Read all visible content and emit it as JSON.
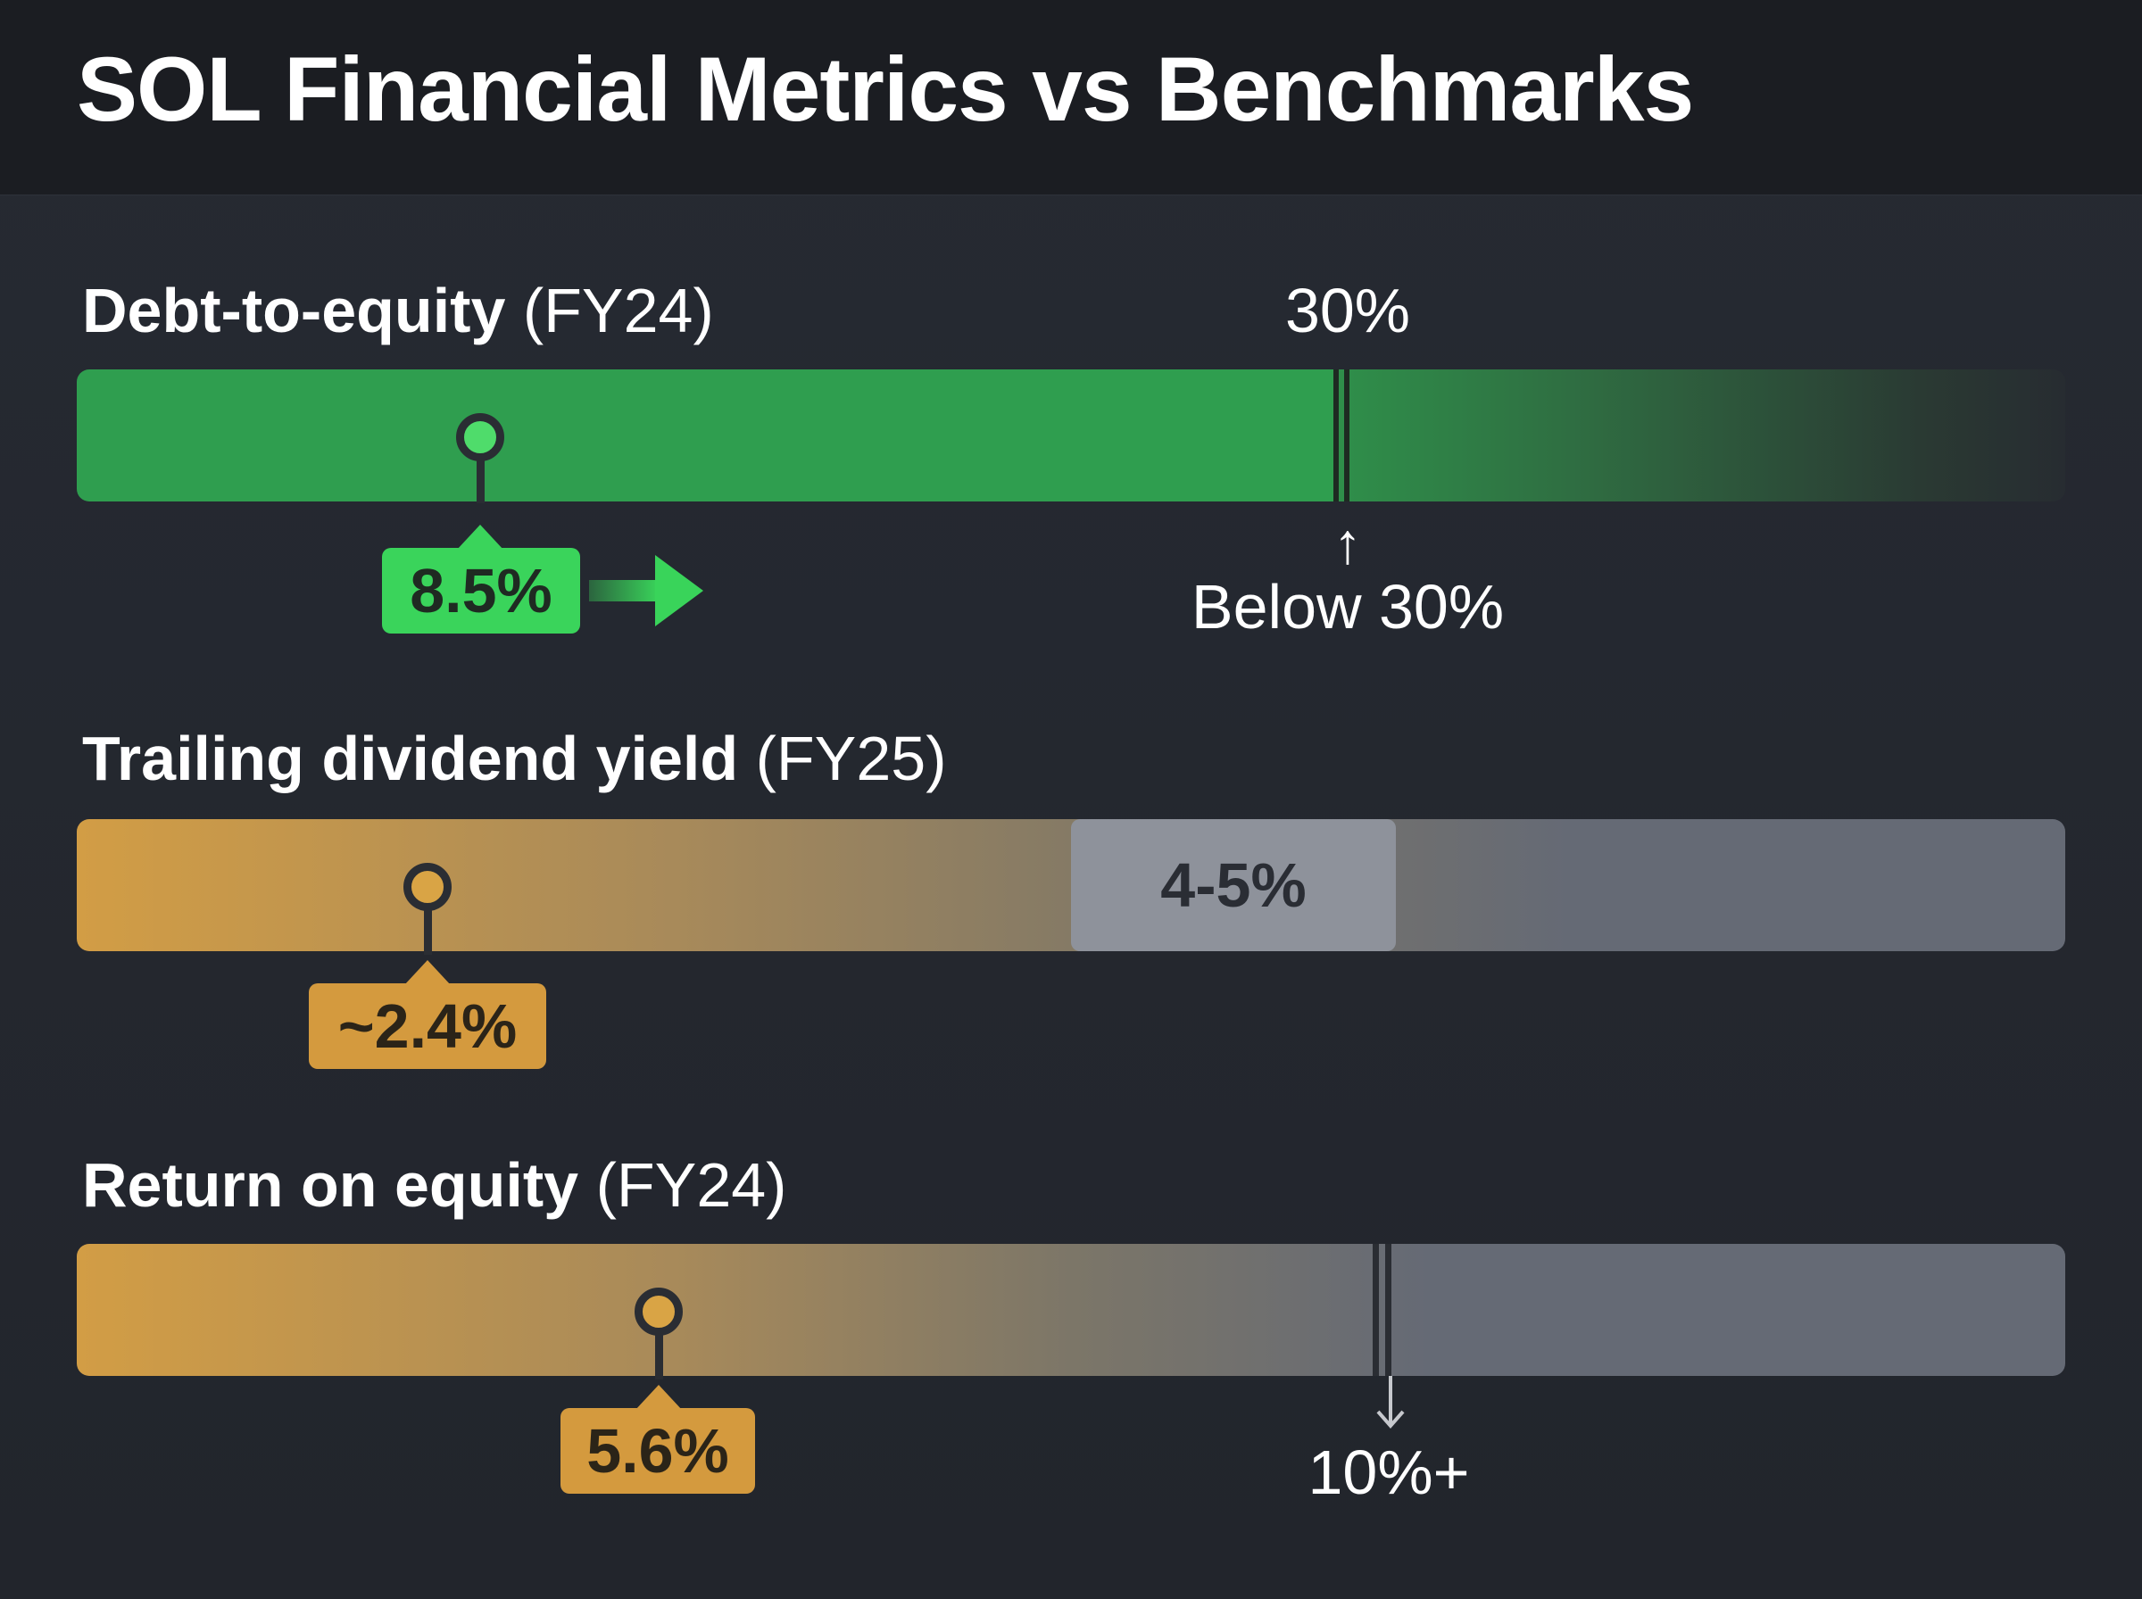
{
  "title": "SOL Financial Metrics vs Benchmarks",
  "colors": {
    "good": "#34c759",
    "warn": "#d7a043",
    "neutral": "#656a75",
    "band": "#8e929b",
    "background": "#22252c",
    "header": "#1b1d22"
  },
  "metrics": [
    {
      "name": "Debt-to-equity",
      "period": "(FY24)",
      "value_label": "8.5%",
      "status": "good",
      "benchmark_top": "30%",
      "benchmark_bottom": "Below 30%",
      "benchmark_arrow": "↑"
    },
    {
      "name": "Trailing dividend yield",
      "period": "(FY25)",
      "value_label": "~2.4%",
      "status": "warn",
      "benchmark_band": "4-5%"
    },
    {
      "name": "Return on equity",
      "period": "(FY24)",
      "value_label": "5.6%",
      "status": "warn",
      "benchmark_bottom": "10%+",
      "benchmark_arrow": "↓"
    }
  ],
  "chart_data": {
    "type": "bar",
    "title": "SOL Financial Metrics vs Benchmarks",
    "categories": [
      "Debt-to-equity (FY24)",
      "Trailing dividend yield (FY25)",
      "Return on equity (FY24)"
    ],
    "series": [
      {
        "values": [
          8.5,
          2.4,
          5.6
        ]
      }
    ],
    "benchmarks": [
      {
        "category": "Debt-to-equity (FY24)",
        "label": "Below 30%",
        "threshold": 30,
        "direction": "below"
      },
      {
        "category": "Trailing dividend yield (FY25)",
        "label": "4-5%",
        "range": [
          4,
          5
        ]
      },
      {
        "category": "Return on equity (FY24)",
        "label": "10%+",
        "threshold": 10,
        "direction": "above"
      }
    ],
    "value_labels": [
      "8.5%",
      "~2.4%",
      "5.6%"
    ],
    "grid": false,
    "legend": "none"
  }
}
